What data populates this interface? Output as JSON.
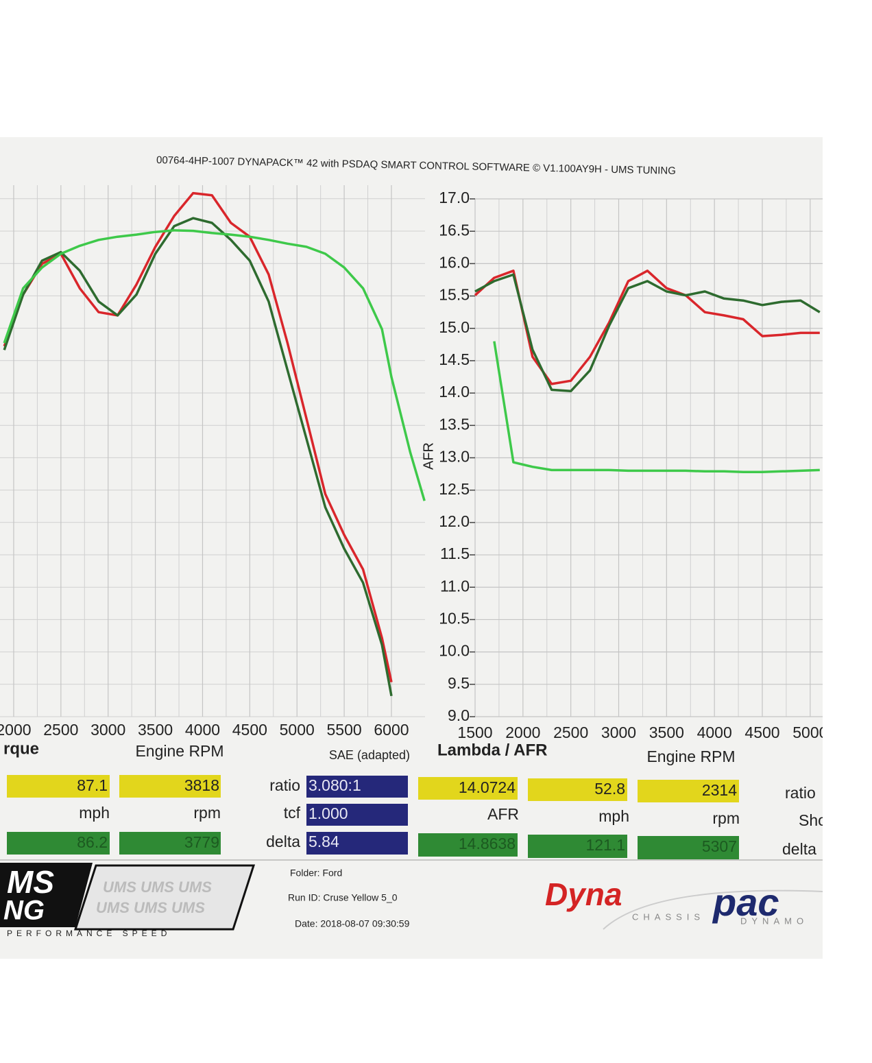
{
  "header": "00764-4HP-1007 DYNAPACK™ 42 with PSDAQ SMART CONTROL SOFTWARE © V1.100AY9H - UMS TUNING",
  "chart_data": [
    {
      "type": "line",
      "title": "rque",
      "xlabel": "Engine RPM",
      "note": "SAE (adapted)",
      "x": [
        1900,
        2100,
        2300,
        2500,
        2700,
        2900,
        3100,
        3300,
        3500,
        3700,
        3900,
        4100,
        4300,
        4500,
        4700,
        4900,
        5100,
        5300,
        5500,
        5700,
        5900,
        6000,
        6200,
        6350
      ],
      "series": [
        {
          "color": "#d9262b",
          "values": [
            69.7,
            79.4,
            85.2,
            87.1,
            80.6,
            76.1,
            75.5,
            81.3,
            88.4,
            94.2,
            98.5,
            98.1,
            92.9,
            90.3,
            83.2,
            70.3,
            56.1,
            41.9,
            34.2,
            27.7,
            14.8,
            6.5,
            null,
            null
          ]
        },
        {
          "color": "#2e6b2f",
          "values": [
            69.0,
            79.4,
            85.8,
            87.4,
            83.9,
            78.1,
            75.5,
            79.4,
            87.1,
            92.3,
            93.8,
            92.9,
            89.7,
            85.8,
            78.1,
            65.2,
            52.3,
            39.4,
            31.6,
            25.2,
            13.5,
            3.9,
            null,
            null
          ]
        },
        {
          "color": "#3ec94a",
          "values": [
            70.3,
            80.6,
            84.5,
            87.1,
            88.6,
            89.7,
            90.3,
            90.7,
            91.2,
            91.5,
            91.4,
            91.0,
            90.7,
            90.3,
            89.7,
            89.0,
            88.4,
            87.1,
            84.5,
            80.6,
            72.9,
            63.9,
            49.7,
            40.6
          ]
        }
      ],
      "xlim": [
        1855,
        6356
      ],
      "ylim": [
        0,
        100
      ],
      "xticks": [
        2000,
        2500,
        3000,
        3500,
        4000,
        4500,
        5000,
        5500,
        6000
      ],
      "grid": true
    },
    {
      "type": "line",
      "title": "Lambda / AFR",
      "xlabel": "Engine RPM",
      "ylabel": "AFR",
      "x": [
        1500,
        1700,
        1900,
        2100,
        2300,
        2500,
        2700,
        2900,
        3100,
        3300,
        3500,
        3700,
        3900,
        4100,
        4300,
        4500,
        4700,
        4900,
        5100
      ],
      "series": [
        {
          "color": "#d9262b",
          "values": [
            15.51,
            15.78,
            15.89,
            14.56,
            14.14,
            14.19,
            14.56,
            15.09,
            15.73,
            15.89,
            15.62,
            15.51,
            15.25,
            15.2,
            15.14,
            14.88,
            14.9,
            14.93,
            14.93
          ]
        },
        {
          "color": "#2e6b2f",
          "values": [
            15.57,
            15.73,
            15.83,
            14.67,
            14.05,
            14.03,
            14.35,
            15.04,
            15.62,
            15.73,
            15.57,
            15.51,
            15.57,
            15.46,
            15.43,
            15.36,
            15.41,
            15.43,
            15.25
          ]
        },
        {
          "color": "#3ec94a",
          "values": [
            null,
            14.8,
            12.93,
            12.86,
            12.81,
            12.81,
            12.81,
            12.81,
            12.8,
            12.8,
            12.8,
            12.8,
            12.79,
            12.79,
            12.78,
            12.78,
            12.79,
            12.8,
            12.81
          ]
        }
      ],
      "xlim": [
        1500,
        5130
      ],
      "ylim": [
        9,
        17
      ],
      "xticks": [
        1500,
        2000,
        2500,
        3000,
        3500,
        4000,
        4500,
        5000
      ],
      "yticks": [
        {
          "value": 9,
          "label": "9.0"
        },
        {
          "value": 9.5,
          "label": "9.5"
        },
        {
          "value": 10,
          "label": "10.0"
        },
        {
          "value": 10.5,
          "label": "10.5"
        },
        {
          "value": 11,
          "label": "11.0"
        },
        {
          "value": 11.5,
          "label": "11.5"
        },
        {
          "value": 12,
          "label": "12.0"
        },
        {
          "value": 12.5,
          "label": "12.5"
        },
        {
          "value": 13,
          "label": "13.0"
        },
        {
          "value": 13.5,
          "label": "13.5"
        },
        {
          "value": 14,
          "label": "14.0"
        },
        {
          "value": 14.5,
          "label": "14.5"
        },
        {
          "value": 15,
          "label": "15.0"
        },
        {
          "value": 15.5,
          "label": "15.5"
        },
        {
          "value": 16,
          "label": "16.0"
        },
        {
          "value": 16.5,
          "label": "16.5"
        },
        {
          "value": 17,
          "label": "17.0"
        }
      ],
      "grid": true
    }
  ],
  "readouts": {
    "left": {
      "yellow": [
        "87.1",
        "3818"
      ],
      "units": [
        "mph",
        "rpm"
      ],
      "green": [
        "86.2",
        "3779"
      ],
      "labels": [
        "ratio",
        "tcf",
        "delta"
      ],
      "blue": [
        "3.080:1",
        "1.000",
        "5.84"
      ]
    },
    "right": {
      "yellow": [
        "14.0724",
        "52.8",
        "2314"
      ],
      "units": [
        "AFR",
        "mph",
        "rpm"
      ],
      "green": [
        "14.8638",
        "121.1",
        "5307"
      ],
      "labels": [
        "ratio",
        "Sho",
        "delta"
      ]
    }
  },
  "footer": {
    "folder": "Folder: Ford",
    "run_id": "Run ID: Cruse Yellow 5_0",
    "date": "Date: 2018-08-07 09:30:59"
  },
  "logos": {
    "ums_1": "MS",
    "ums_2": "NG",
    "ums_watermark": "UMS UMS UMS",
    "ums_tagline": "PERFORMANCE SPEED",
    "dynapack_red": "Dyna",
    "dynapack_blue": "pac",
    "chassis": "CHASSIS",
    "dynamo": "DYNAMO"
  }
}
